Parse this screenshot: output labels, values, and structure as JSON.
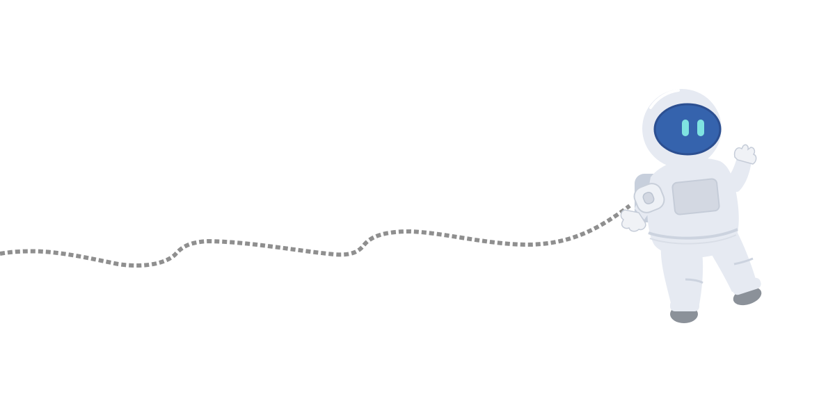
{
  "scene": {
    "subject": "astronaut-icon",
    "tether": "tether-icon"
  },
  "colors": {
    "background": "#ffffff",
    "tether": "#8f8f8f",
    "suit": "#e6eaf2",
    "suit_shadow": "#ccd3df",
    "suit_outline": "#b9c1cf",
    "visor": "#3563ad",
    "visor_rim": "#2c4f91",
    "eyes": "#7fe3e1",
    "boots": "#8b9199",
    "chest_panel": "#d3d8e2"
  }
}
